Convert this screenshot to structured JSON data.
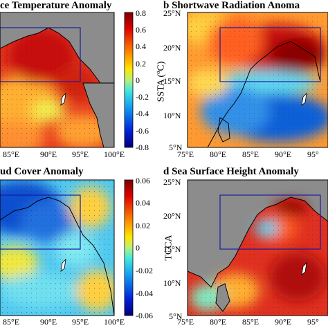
{
  "panels": [
    {
      "id": "a",
      "title": "ce Temperature Anomaly",
      "x_ticks": [
        "85°E",
        "90°E",
        "95°E",
        "100°E"
      ],
      "y_ticks": []
    },
    {
      "id": "b",
      "title": "b  Shortwave Radiation Anoma",
      "x_ticks": [
        "75°E",
        "80°E",
        "85°E",
        "90°E",
        "95°"
      ],
      "y_ticks": [
        "25°N",
        "20°N",
        "15°N",
        "10°N",
        "5°N"
      ]
    },
    {
      "id": "c",
      "title": "ud Cover Anomaly",
      "x_ticks": [
        "85°E",
        "90°E",
        "95°E",
        "100°E"
      ],
      "y_ticks": []
    },
    {
      "id": "d",
      "title": "d  Sea Surface Height Anomaly",
      "x_ticks": [
        "75°E",
        "80°E",
        "85°E",
        "90°E",
        "95°"
      ],
      "y_ticks": [
        "25°N",
        "20°N",
        "15°N",
        "10°N",
        "5°N"
      ]
    }
  ],
  "colorbars": [
    {
      "id": "ssta",
      "title": "SSTA (ºC)",
      "labels": [
        "0.8",
        "0.6",
        "0.4",
        "0.2",
        "0",
        "-0.2",
        "-0.4",
        "-0.6",
        "-0.8"
      ]
    },
    {
      "id": "tcca",
      "title": "TCCA",
      "labels": [
        "0.06",
        "0.04",
        "0.02",
        "0",
        "-0.02",
        "-0.04",
        "-0.06"
      ]
    }
  ],
  "colors": {
    "land": "#8c8c8c",
    "box": "#1a1aa0",
    "red": "#d7301f",
    "dark_red": "#8b0000",
    "orange": "#f4a040",
    "yellow": "#ffe040",
    "cyan": "#40c8e8",
    "blue": "#1560d0",
    "navy": "#00007a"
  }
}
